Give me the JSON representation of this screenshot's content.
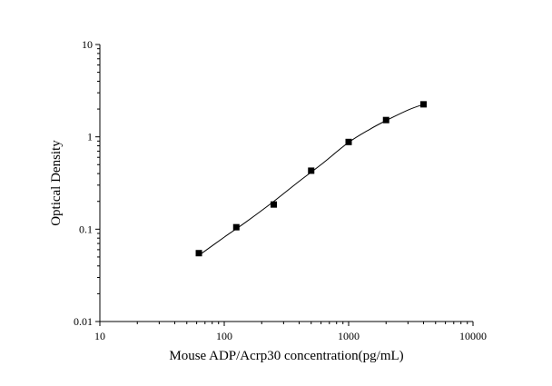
{
  "chart_data": {
    "type": "scatter",
    "title": "",
    "xlabel": "Mouse ADP/Acrp30 concentration(pg/mL)",
    "ylabel": "Optical Density",
    "x_scale": "log",
    "y_scale": "log",
    "xlim": [
      10,
      10000
    ],
    "ylim": [
      0.01,
      10
    ],
    "x_ticks": [
      "10",
      "100",
      "1000",
      "10000"
    ],
    "y_ticks": [
      "0.01",
      "0.1",
      "1",
      "10"
    ],
    "grid": false,
    "legend": "none",
    "series": [
      {
        "marker": "square",
        "x": [
          62.5,
          125,
          250,
          500,
          1000,
          2000,
          4000
        ],
        "y": [
          0.055,
          0.105,
          0.185,
          0.43,
          0.88,
          1.52,
          2.25
        ]
      }
    ],
    "fit_curve": {
      "type": "smooth",
      "x": [
        62.5,
        100,
        150,
        250,
        400,
        600,
        1000,
        1500,
        2000,
        3000,
        4000
      ],
      "y": [
        0.052,
        0.082,
        0.12,
        0.2,
        0.33,
        0.5,
        0.87,
        1.22,
        1.5,
        1.95,
        2.25
      ]
    },
    "colors": {
      "marks": "#000000",
      "axis": "#000000",
      "background": "#ffffff"
    }
  }
}
